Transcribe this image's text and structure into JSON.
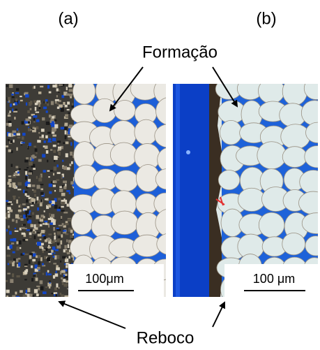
{
  "panel_labels": {
    "a": "(a)",
    "b": "(b)"
  },
  "annotations": {
    "formation": "Formação",
    "filter_cake": "Reboco"
  },
  "scale_bars": {
    "a": "100μm",
    "b": "100 μm"
  }
}
